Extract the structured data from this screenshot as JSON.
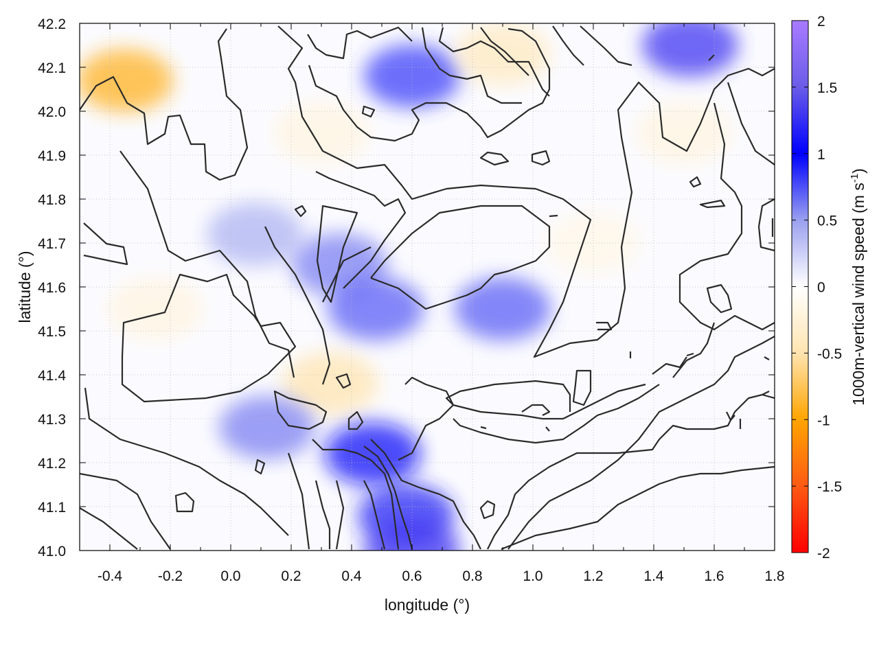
{
  "chart_data": {
    "type": "heatmap",
    "title": "",
    "xlabel": "longitude (°)",
    "ylabel": "latitude (°)",
    "xlim": [
      -0.5,
      1.8
    ],
    "ylim": [
      41.0,
      42.2
    ],
    "x_ticks": [
      "-0.4",
      "-0.2",
      "0.0",
      "0.2",
      "0.4",
      "0.6",
      "0.8",
      "1.0",
      "1.2",
      "1.4",
      "1.6",
      "1.8"
    ],
    "y_ticks": [
      "41.0",
      "41.1",
      "41.2",
      "41.3",
      "41.4",
      "41.5",
      "41.6",
      "41.7",
      "41.8",
      "41.9",
      "42.0",
      "42.1",
      "42.2"
    ],
    "grid": true,
    "colorbar": {
      "label_main": "1000m-vertical wind speed (m s",
      "label_sup": "-1",
      "label_end": ")",
      "range": [
        -2,
        2
      ],
      "ticks": [
        "2",
        "1.5",
        "1",
        "0.5",
        "0",
        "-0.5",
        "-1",
        "-1.5",
        "-2"
      ],
      "colors": {
        "2": "#a97bff",
        "1.5": "#6a5ce8",
        "1": "#0000ff",
        "0.5": "#9aa0ef",
        "0": "#ffffff",
        "-0.5": "#ffe4b0",
        "-1": "#ffa500",
        "-1.5": "#ff5a14",
        "-2": "#ff0000"
      }
    },
    "contour_color": "#2a2a2a",
    "field_regions": [
      {
        "lon": -0.35,
        "lat": 42.07,
        "w": -0.9
      },
      {
        "lon": 0.08,
        "lat": 41.72,
        "w": 0.4
      },
      {
        "lon": 0.36,
        "lat": 41.65,
        "w": 0.6
      },
      {
        "lon": 0.48,
        "lat": 41.55,
        "w": 0.7
      },
      {
        "lon": 0.33,
        "lat": 41.38,
        "w": -0.5
      },
      {
        "lon": 0.12,
        "lat": 41.28,
        "w": 0.6
      },
      {
        "lon": 0.47,
        "lat": 41.22,
        "w": 1.1
      },
      {
        "lon": 0.58,
        "lat": 41.08,
        "w": 1.2
      },
      {
        "lon": 0.6,
        "lat": 41.0,
        "w": 1.3
      },
      {
        "lon": 0.9,
        "lat": 41.55,
        "w": 0.7
      },
      {
        "lon": 1.52,
        "lat": 42.15,
        "w": 1.3
      },
      {
        "lon": 0.6,
        "lat": 42.08,
        "w": 0.8
      },
      {
        "lon": 0.9,
        "lat": 42.13,
        "w": -0.4
      },
      {
        "lon": 0.3,
        "lat": 41.95,
        "w": -0.2
      },
      {
        "lon": -0.25,
        "lat": 41.55,
        "w": -0.2
      },
      {
        "lon": 1.5,
        "lat": 41.95,
        "w": -0.2
      },
      {
        "lon": 1.2,
        "lat": 41.7,
        "w": -0.15
      }
    ]
  }
}
